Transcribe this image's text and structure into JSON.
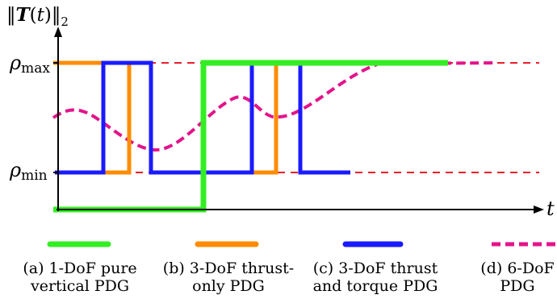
{
  "chart_data": {
    "type": "line",
    "ylabel": "‖T(t)‖₂",
    "xlabel": "t",
    "y_ticks": [
      {
        "name": "rho_max",
        "base": "ρ",
        "sub": "max"
      },
      {
        "name": "rho_min",
        "base": "ρ",
        "sub": "min"
      }
    ],
    "legend_placement": "bottom",
    "series": [
      {
        "id": "a",
        "color": "#33ee22",
        "style": "solid"
      },
      {
        "id": "b",
        "color": "#ff8c00",
        "style": "solid"
      },
      {
        "id": "c",
        "color": "#1a1aff",
        "style": "solid"
      },
      {
        "id": "d",
        "color": "#e3148a",
        "style": "dashed"
      }
    ]
  },
  "captions": {
    "a": {
      "line1": "(a) 1-DoF pure",
      "line2": "vertical PDG"
    },
    "b": {
      "line1": "(b) 3-DoF thrust-",
      "line2": "only PDG"
    },
    "c": {
      "line1": "(c) 3-DoF thrust",
      "line2": "and torque PDG"
    },
    "d": {
      "line1": "(d) 6-DoF",
      "line2": "PDG"
    }
  },
  "colors": {
    "limit_line": "#e8202a",
    "axis": "#000000"
  }
}
